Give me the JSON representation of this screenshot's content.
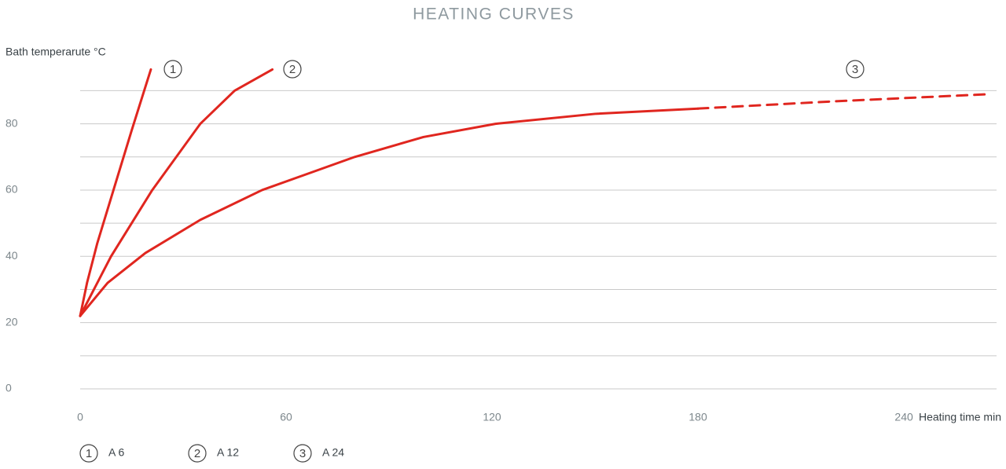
{
  "chart_data": {
    "type": "line",
    "title": "HEATING CURVES",
    "y_label": "Bath temperarute °C",
    "x_label": "Heating time min",
    "xlim": [
      0,
      267
    ],
    "ylim": [
      0,
      96.5
    ],
    "xticks": [
      0,
      60,
      120,
      180,
      240
    ],
    "yticks": [
      0,
      20,
      40,
      60,
      80
    ],
    "minor_yticks": [
      10,
      30,
      50,
      70,
      90
    ],
    "grid": true,
    "series": [
      {
        "id": "1",
        "name": "A 6",
        "color": "#e0261f",
        "segments": [
          {
            "style": "solid",
            "x": [
              0,
              2,
              5,
              10,
              15,
              20.6
            ],
            "values": [
              22,
              32,
              44,
              61,
              78,
              96.4
            ]
          }
        ]
      },
      {
        "id": "2",
        "name": "A 12",
        "color": "#e0261f",
        "segments": [
          {
            "style": "solid",
            "x": [
              0,
              9,
              21,
              35,
              45,
              56
            ],
            "values": [
              22,
              40,
              60,
              80,
              90,
              96.4
            ]
          }
        ]
      },
      {
        "id": "3",
        "name": "A 24",
        "color": "#e0261f",
        "segments": [
          {
            "style": "solid",
            "x": [
              0,
              8,
              19,
              35,
              53,
              80,
              100,
              121,
              150,
              180
            ],
            "values": [
              22,
              32,
              41,
              51,
              60,
              70,
              76,
              80,
              83,
              84.6
            ]
          },
          {
            "style": "dashed",
            "x": [
              180,
              220,
              264
            ],
            "values": [
              84.6,
              86.8,
              88.9
            ]
          }
        ]
      }
    ]
  }
}
